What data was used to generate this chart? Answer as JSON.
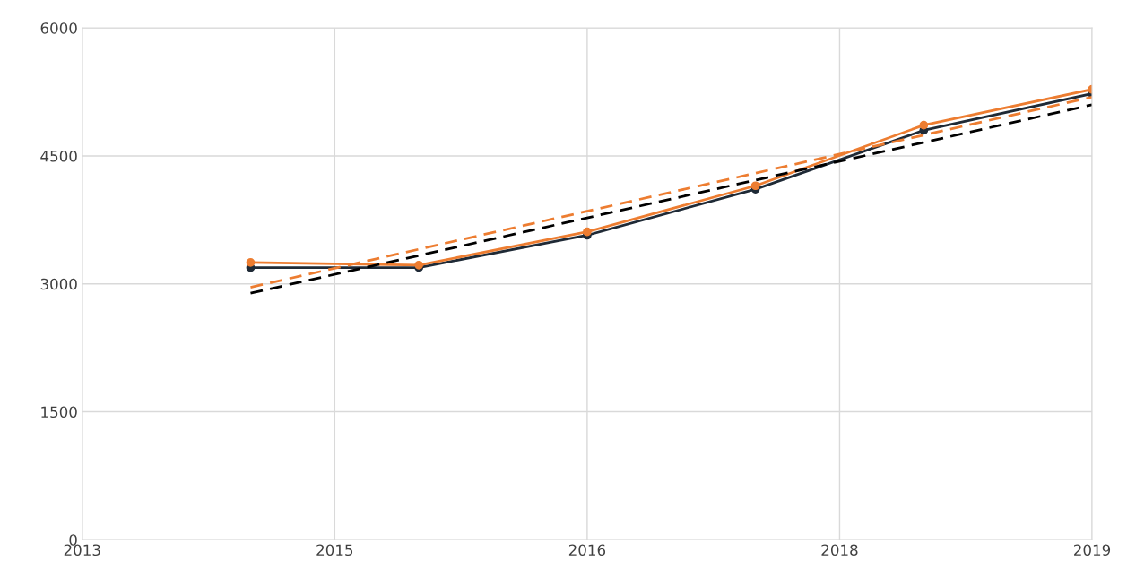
{
  "chart_data": {
    "type": "line",
    "categories": [
      "2013",
      null,
      null,
      "2015",
      null,
      null,
      "2016",
      null,
      null,
      "2018",
      null,
      null,
      "2019"
    ],
    "ylim": [
      0,
      6000
    ],
    "yticks": [
      0,
      1500,
      3000,
      4500,
      6000
    ],
    "grid": true,
    "marker": "circle",
    "series": [
      {
        "color": "#1f2a36",
        "values": [
          null,
          null,
          3190,
          null,
          3190,
          null,
          3570,
          null,
          4110,
          null,
          4800,
          null,
          5230
        ]
      },
      {
        "color": "#ed7d31",
        "values": [
          null,
          null,
          3250,
          null,
          3220,
          null,
          3610,
          null,
          4150,
          null,
          4860,
          null,
          5280
        ]
      },
      {
        "type": "line",
        "color": "#000000",
        "marker": "none",
        "line_style": "dashed",
        "values": [
          null,
          null,
          2890,
          null,
          null,
          null,
          null,
          null,
          null,
          null,
          null,
          null,
          5100
        ]
      },
      {
        "type": "line",
        "color": "#ed7d31",
        "marker": "none",
        "line_style": "dashed",
        "values": [
          null,
          null,
          2960,
          null,
          null,
          null,
          null,
          null,
          null,
          null,
          null,
          null,
          5190
        ]
      }
    ]
  }
}
